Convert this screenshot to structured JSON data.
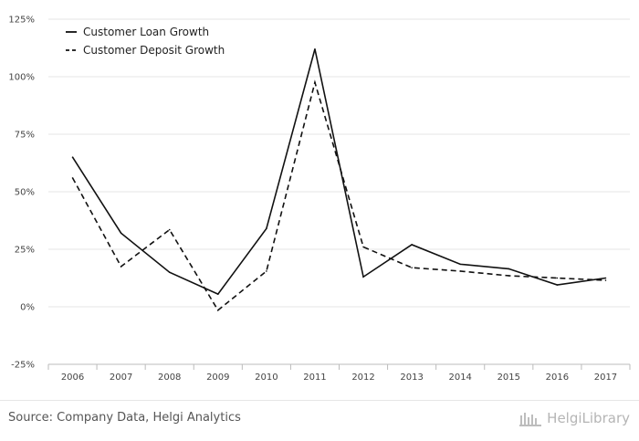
{
  "chart_data": {
    "type": "line",
    "title": "",
    "xlabel": "",
    "ylabel": "",
    "categories": [
      "2006",
      "2007",
      "2008",
      "2009",
      "2010",
      "2011",
      "2012",
      "2013",
      "2014",
      "2015",
      "2016",
      "2017"
    ],
    "series": [
      {
        "name": "Customer Loan Growth",
        "style": "solid",
        "values": [
          65,
          32,
          15,
          5.5,
          34,
          112,
          13,
          27,
          18.5,
          16.5,
          9.5,
          12.5
        ]
      },
      {
        "name": "Customer Deposit Growth",
        "style": "dashed",
        "values": [
          56,
          17.5,
          33.5,
          -1.5,
          15.5,
          97.5,
          26,
          17,
          15.5,
          13.5,
          12.5,
          11.5
        ]
      }
    ],
    "ylim": [
      -25,
      125
    ],
    "yticks": [
      -25,
      0,
      25,
      50,
      75,
      100,
      125
    ],
    "ytick_labels": [
      "-25%",
      "0%",
      "25%",
      "50%",
      "75%",
      "100%",
      "125%"
    ],
    "grid": true,
    "legend_position": "top-left"
  },
  "footer": {
    "source": "Source: Company Data, Helgi Analytics",
    "brand": "HelgiLibrary"
  },
  "colors": {
    "line": "#111111",
    "grid": "#e5e5e5",
    "axis": "#bbbbbb"
  }
}
